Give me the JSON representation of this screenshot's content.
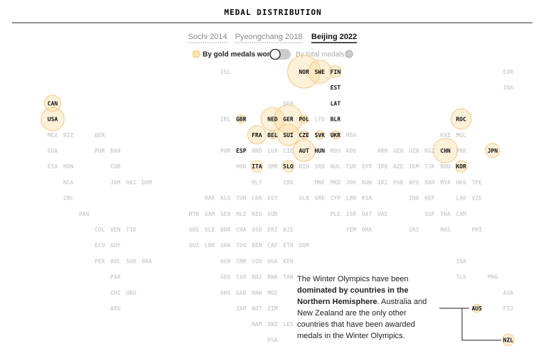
{
  "header": {
    "title": "MEDAL DISTRIBUTION"
  },
  "tabs": [
    "Sochi 2014",
    "Pyeongchang 2018",
    "Beijing 2022"
  ],
  "active_tab": 2,
  "toggle": {
    "on": "By gold medals won",
    "off": "By total medals"
  },
  "annotation": [
    "The Winter Olympics have been ",
    "dominated by countries in the Northern Hemisphere",
    ". Australia and New Zealand are the only other countries that have been awarded medals in the Winter Olympics."
  ],
  "map": {
    "rows": [
      [
        {
          "code": "ISL"
        },
        {
          "code": "NOR",
          "gold": 16
        },
        {
          "code": "SWE",
          "gold": 8
        },
        {
          "code": "FIN",
          "gold": 2
        },
        {
          "code": "EOR"
        }
      ],
      [
        {
          "code": "EST",
          "gold": 0
        },
        {
          "code": "IOA"
        }
      ],
      [
        {
          "code": "CAN",
          "gold": 4
        },
        {
          "code": "DEN"
        },
        {
          "code": "LAT",
          "gold": 0
        }
      ],
      [
        {
          "code": "USA",
          "gold": 8
        },
        {
          "code": "IRL"
        },
        {
          "code": "GBR",
          "gold": 1
        },
        {
          "code": "NED",
          "gold": 8
        },
        {
          "code": "GER",
          "gold": 12
        },
        {
          "code": "POL",
          "gold": 1
        },
        {
          "code": "LTU"
        },
        {
          "code": "BLR",
          "gold": 0
        },
        {
          "code": "ROC",
          "gold": 6
        }
      ],
      [
        {
          "code": "MEX"
        },
        {
          "code": "BIZ"
        },
        {
          "code": "BER"
        },
        {
          "code": "FRA",
          "gold": 5
        },
        {
          "code": "BEL",
          "gold": 1
        },
        {
          "code": "SUI",
          "gold": 7
        },
        {
          "code": "CZE",
          "gold": 1
        },
        {
          "code": "SVK",
          "gold": 1
        },
        {
          "code": "UKR",
          "gold": 1
        },
        {
          "code": "MDA"
        },
        {
          "code": "KAZ"
        },
        {
          "code": "MGL"
        }
      ],
      [
        {
          "code": "GUA"
        },
        {
          "code": "PUR"
        },
        {
          "code": "BAH"
        },
        {
          "code": "POR"
        },
        {
          "code": "ESP",
          "gold": 0
        },
        {
          "code": "AND"
        },
        {
          "code": "LUX"
        },
        {
          "code": "LIE"
        },
        {
          "code": "AUT",
          "gold": 7
        },
        {
          "code": "HUN",
          "gold": 0
        },
        {
          "code": "ROU"
        },
        {
          "code": "KOS"
        },
        {
          "code": "ARM"
        },
        {
          "code": "GEO"
        },
        {
          "code": "UZB"
        },
        {
          "code": "KGZ"
        },
        {
          "code": "CHN",
          "gold": 9
        },
        {
          "code": "PRK"
        },
        {
          "code": "JPN",
          "gold": 3
        }
      ],
      [
        {
          "code": "ESA"
        },
        {
          "code": "HON"
        },
        {
          "code": "CUB"
        },
        {
          "code": "MON"
        },
        {
          "code": "ITA",
          "gold": 2
        },
        {
          "code": "SMR"
        },
        {
          "code": "SLO",
          "gold": 2
        },
        {
          "code": "BIH"
        },
        {
          "code": "SRB"
        },
        {
          "code": "BUL"
        },
        {
          "code": "TUR"
        },
        {
          "code": "SYR"
        },
        {
          "code": "IRQ"
        },
        {
          "code": "AZE"
        },
        {
          "code": "TKM"
        },
        {
          "code": "TJK"
        },
        {
          "code": "BHU"
        },
        {
          "code": "KOR",
          "gold": 2
        }
      ],
      [
        {
          "code": "NCA"
        },
        {
          "code": "JAM"
        },
        {
          "code": "HAI"
        },
        {
          "code": "DOM"
        },
        {
          "code": "MLT"
        },
        {
          "code": "CRO"
        },
        {
          "code": "MNE"
        },
        {
          "code": "MKD"
        },
        {
          "code": "JOR"
        },
        {
          "code": "KUW"
        },
        {
          "code": "IRI"
        },
        {
          "code": "PAK"
        },
        {
          "code": "AFG"
        },
        {
          "code": "BAN"
        },
        {
          "code": "MYA"
        },
        {
          "code": "HKG"
        },
        {
          "code": "TPE"
        }
      ],
      [
        {
          "code": "CRC"
        },
        {
          "code": "MAR"
        },
        {
          "code": "ALG"
        },
        {
          "code": "TUN"
        },
        {
          "code": "LBA"
        },
        {
          "code": "EGY"
        },
        {
          "code": "ALB"
        },
        {
          "code": "GRE"
        },
        {
          "code": "CYP"
        },
        {
          "code": "LBN"
        },
        {
          "code": "KSA"
        },
        {
          "code": "IND"
        },
        {
          "code": "NEP"
        },
        {
          "code": "LAO"
        },
        {
          "code": "VIE"
        }
      ],
      [
        {
          "code": "PAN"
        },
        {
          "code": "MTN"
        },
        {
          "code": "GAM"
        },
        {
          "code": "SEN"
        },
        {
          "code": "MLI"
        },
        {
          "code": "NIG"
        },
        {
          "code": "SUD"
        },
        {
          "code": "PLE"
        },
        {
          "code": "ISR"
        },
        {
          "code": "QAT"
        },
        {
          "code": "UAE"
        },
        {
          "code": "SGP"
        },
        {
          "code": "THA"
        },
        {
          "code": "CAM"
        }
      ],
      [
        {
          "code": "COL"
        },
        {
          "code": "VEN"
        },
        {
          "code": "TTO"
        },
        {
          "code": "GBS"
        },
        {
          "code": "SLE"
        },
        {
          "code": "BUR"
        },
        {
          "code": "CHA"
        },
        {
          "code": "SSD"
        },
        {
          "code": "ERI"
        },
        {
          "code": "DJI"
        },
        {
          "code": "YEM"
        },
        {
          "code": "OMA"
        },
        {
          "code": "SRI"
        },
        {
          "code": "MAS"
        },
        {
          "code": "PHI"
        }
      ],
      [
        {
          "code": "ECU"
        },
        {
          "code": "GUY"
        },
        {
          "code": "GUI"
        },
        {
          "code": "LBR"
        },
        {
          "code": "GHA"
        },
        {
          "code": "TOG"
        },
        {
          "code": "BEN"
        },
        {
          "code": "CAF"
        },
        {
          "code": "ETH"
        },
        {
          "code": "SOM"
        }
      ],
      [
        {
          "code": "PER"
        },
        {
          "code": "BOL"
        },
        {
          "code": "SUR"
        },
        {
          "code": "BRA"
        },
        {
          "code": "NGR"
        },
        {
          "code": "CMR"
        },
        {
          "code": "COD"
        },
        {
          "code": "UGA"
        },
        {
          "code": "KEN"
        },
        {
          "code": "INA"
        }
      ],
      [
        {
          "code": "PAR"
        },
        {
          "code": "GEQ"
        },
        {
          "code": "CGO"
        },
        {
          "code": "BDI"
        },
        {
          "code": "RWA"
        },
        {
          "code": "TAN"
        },
        {
          "code": "TLS"
        },
        {
          "code": "PNG"
        }
      ],
      [
        {
          "code": "CHI"
        },
        {
          "code": "URU"
        },
        {
          "code": "ANG"
        },
        {
          "code": "GAB"
        },
        {
          "code": "MAW"
        },
        {
          "code": "MOZ"
        },
        {
          "code": "ASA"
        }
      ],
      [
        {
          "code": "ARG"
        },
        {
          "code": "ZAM"
        },
        {
          "code": "BOT"
        },
        {
          "code": "ZIM"
        },
        {
          "code": "AUS",
          "gold": 1
        },
        {
          "code": "FIJ"
        }
      ],
      [
        {
          "code": "NAM"
        },
        {
          "code": "SWZ"
        },
        {
          "code": "LES"
        }
      ],
      [
        {
          "code": "RSA"
        },
        {
          "code": "NZL",
          "gold": 2
        }
      ]
    ]
  }
}
